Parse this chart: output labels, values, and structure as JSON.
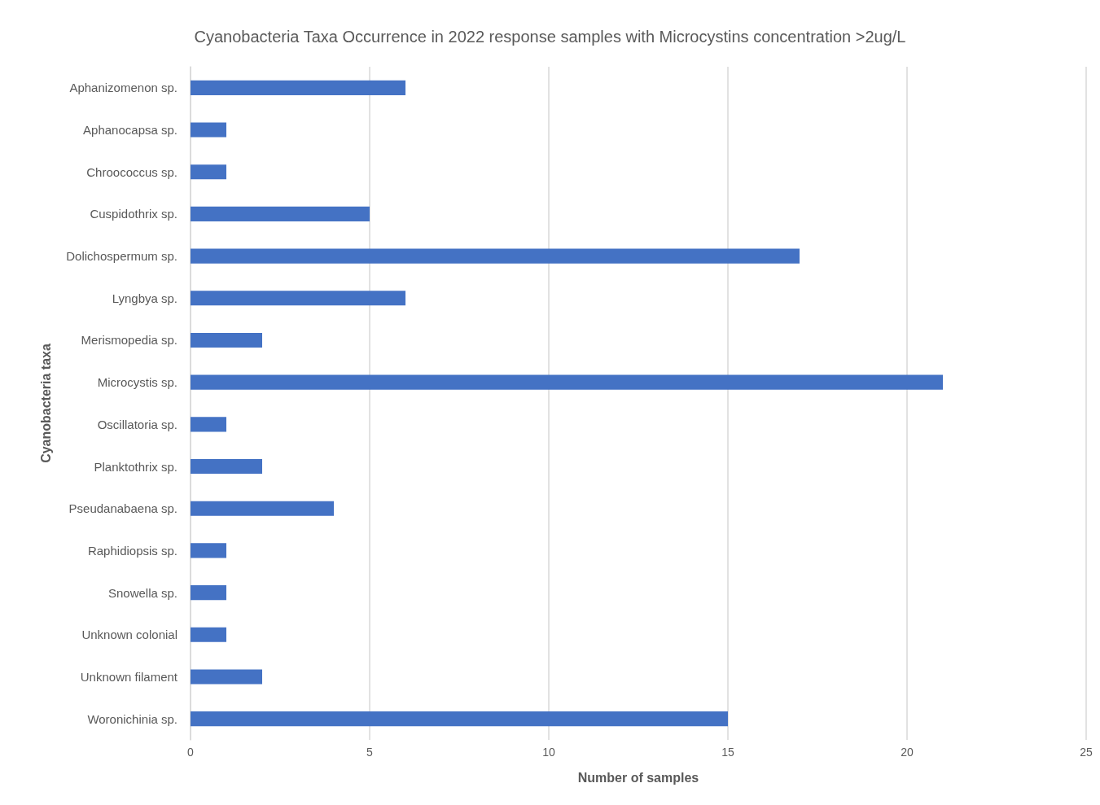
{
  "chart_data": {
    "type": "bar",
    "orientation": "horizontal",
    "title": "Cyanobacteria Taxa Occurrence in 2022 response samples with Microcystins concentration >2ug/L",
    "xlabel": "Number of samples",
    "ylabel": "Cyanobacteria taxa",
    "categories": [
      "Aphanizomenon sp.",
      "Aphanocapsa sp.",
      "Chroococcus sp.",
      "Cuspidothrix sp.",
      "Dolichospermum sp.",
      "Lyngbya sp.",
      "Merismopedia sp.",
      "Microcystis sp.",
      "Oscillatoria sp.",
      "Planktothrix sp.",
      "Pseudanabaena sp.",
      "Raphidiopsis sp.",
      "Snowella sp.",
      "Unknown colonial",
      "Unknown filament",
      "Woronichinia sp."
    ],
    "values": [
      6,
      1,
      1,
      5,
      17,
      6,
      2,
      21,
      1,
      2,
      4,
      1,
      1,
      1,
      2,
      15
    ],
    "color": "#4472c4",
    "xlim": [
      0,
      25
    ],
    "xticks": [
      0,
      5,
      10,
      15,
      20,
      25
    ],
    "grid": "x"
  }
}
